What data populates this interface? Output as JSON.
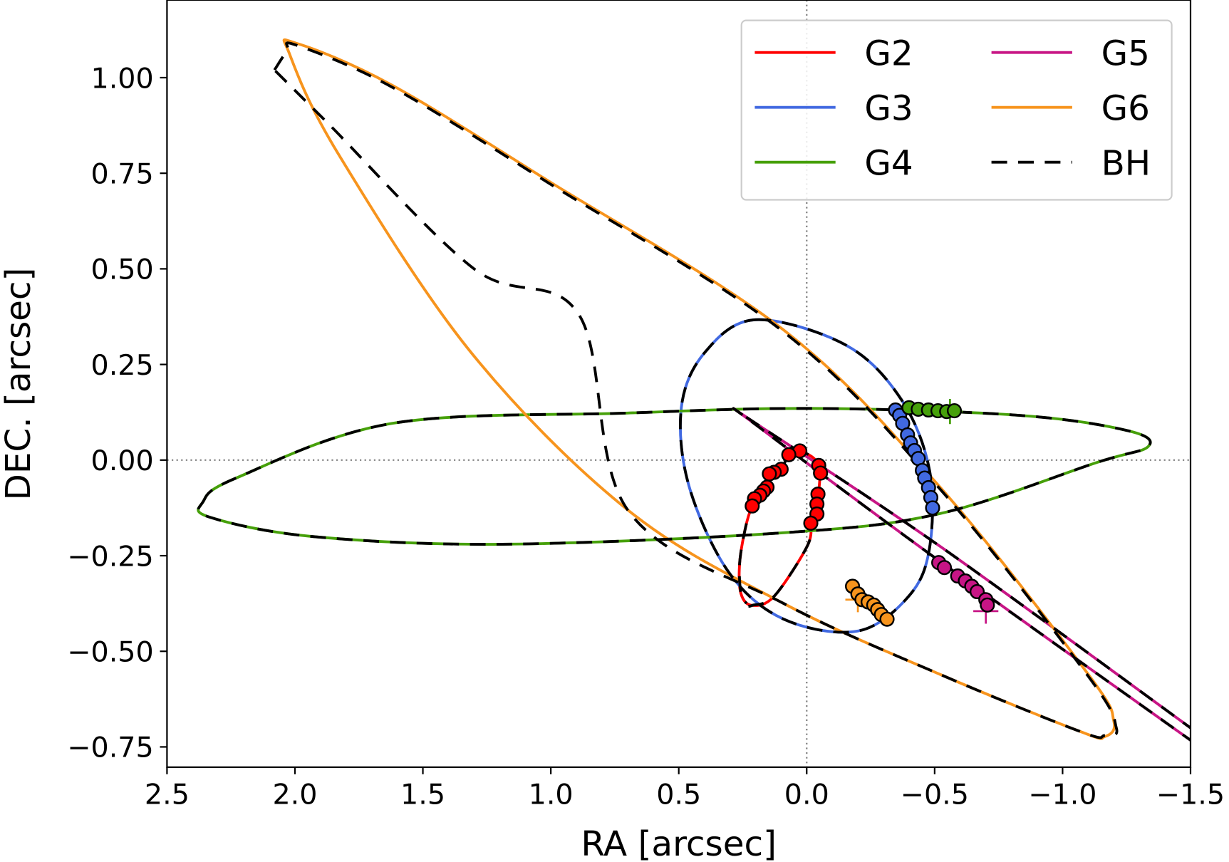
{
  "chart_data": {
    "type": "line",
    "xlabel": "RA [arcsec]",
    "ylabel": "DEC. [arcsec]",
    "xlim": [
      2.5,
      -1.5
    ],
    "ylim": [
      -0.803,
      1.203
    ],
    "x_inverted": true,
    "grid": false,
    "reference_lines": {
      "x": 0.0,
      "y": 0.0,
      "style": "dotted",
      "color": "#808080"
    },
    "xticks": [
      "2.5",
      "2.0",
      "1.5",
      "1.0",
      "0.5",
      "0.0",
      "−0.5",
      "−1.0",
      "−1.5"
    ],
    "xtick_values": [
      2.5,
      2.0,
      1.5,
      1.0,
      0.5,
      0.0,
      -0.5,
      -1.0,
      -1.5
    ],
    "yticks": [
      "1.00",
      "0.75",
      "0.50",
      "0.25",
      "0.00",
      "−0.25",
      "−0.50",
      "−0.75"
    ],
    "ytick_values": [
      1.0,
      0.75,
      0.5,
      0.25,
      0.0,
      -0.25,
      -0.5,
      -0.75
    ],
    "legend": {
      "placement": "top-right",
      "columns": 2,
      "entries": [
        {
          "label": "G2",
          "color": "#ff0000",
          "style": "solid"
        },
        {
          "label": "G3",
          "color": "#4169e1",
          "style": "solid"
        },
        {
          "label": "G4",
          "color": "#46a00a",
          "style": "solid"
        },
        {
          "label": "G5",
          "color": "#c71585",
          "style": "solid"
        },
        {
          "label": "G6",
          "color": "#f7941d",
          "style": "solid"
        },
        {
          "label": "BH",
          "color": "#000000",
          "style": "dashed"
        }
      ]
    },
    "series": [
      {
        "name": "G2",
        "color": "#ff0000",
        "closed": false,
        "orbit": [
          [
            -0.016,
            -0.165
          ],
          [
            -0.04,
            -0.115
          ],
          [
            -0.047,
            -0.014
          ],
          [
            0.027,
            0.024
          ],
          [
            0.07,
            0.014
          ],
          [
            0.1,
            -0.024
          ],
          [
            0.146,
            -0.036
          ],
          [
            0.183,
            -0.092
          ],
          [
            0.213,
            -0.12
          ],
          [
            0.239,
            -0.176
          ],
          [
            0.262,
            -0.269
          ],
          [
            0.257,
            -0.349
          ],
          [
            0.213,
            -0.38
          ],
          [
            0.127,
            -0.356
          ],
          [
            -0.002,
            -0.225
          ],
          [
            -0.016,
            -0.165
          ]
        ],
        "bh_orbit": [
          [
            0.228,
            -0.382
          ],
          [
            0.213,
            -0.38
          ],
          [
            0.127,
            -0.356
          ],
          [
            -0.002,
            -0.225
          ],
          [
            -0.016,
            -0.165
          ],
          [
            -0.04,
            -0.115
          ],
          [
            -0.047,
            -0.014
          ],
          [
            0.027,
            0.024
          ],
          [
            0.07,
            0.014
          ],
          [
            0.1,
            -0.024
          ],
          [
            0.146,
            -0.036
          ],
          [
            0.183,
            -0.092
          ],
          [
            0.213,
            -0.12
          ],
          [
            0.239,
            -0.176
          ],
          [
            0.262,
            -0.269
          ],
          [
            0.257,
            -0.349
          ],
          [
            0.235,
            -0.375
          ]
        ],
        "observations": [
          [
            0.027,
            0.024
          ],
          [
            0.07,
            0.014
          ],
          [
            0.1,
            -0.024
          ],
          [
            0.127,
            -0.032
          ],
          [
            0.146,
            -0.036
          ],
          [
            0.155,
            -0.071
          ],
          [
            0.169,
            -0.081
          ],
          [
            0.183,
            -0.092
          ],
          [
            0.204,
            -0.101
          ],
          [
            0.213,
            -0.12
          ],
          [
            -0.047,
            -0.014
          ],
          [
            -0.054,
            -0.034
          ],
          [
            -0.044,
            -0.089
          ],
          [
            -0.04,
            -0.115
          ],
          [
            -0.04,
            -0.141
          ],
          [
            -0.016,
            -0.165
          ]
        ],
        "crosses": []
      },
      {
        "name": "G3",
        "color": "#4169e1",
        "closed": true,
        "orbit": [
          [
            0.2,
            0.367
          ],
          [
            -0.155,
            0.3
          ],
          [
            -0.37,
            0.158
          ],
          [
            -0.48,
            -0.027
          ],
          [
            -0.48,
            -0.23
          ],
          [
            -0.4,
            -0.355
          ],
          [
            -0.2,
            -0.447
          ],
          [
            0.09,
            -0.416
          ],
          [
            0.305,
            -0.293
          ],
          [
            0.46,
            -0.068
          ],
          [
            0.49,
            0.137
          ],
          [
            0.4,
            0.28
          ]
        ],
        "observations": [
          [
            -0.347,
            0.131
          ],
          [
            -0.363,
            0.117
          ],
          [
            -0.375,
            0.096
          ],
          [
            -0.394,
            0.066
          ],
          [
            -0.406,
            0.045
          ],
          [
            -0.421,
            0.025
          ],
          [
            -0.436,
            0.004
          ],
          [
            -0.452,
            -0.027
          ],
          [
            -0.461,
            -0.047
          ],
          [
            -0.476,
            -0.072
          ],
          [
            -0.485,
            -0.098
          ],
          [
            -0.492,
            -0.125
          ]
        ],
        "crosses": []
      },
      {
        "name": "G4",
        "color": "#46a00a",
        "closed": true,
        "orbit": [
          [
            2.36,
            -0.11
          ],
          [
            2.23,
            -0.047
          ],
          [
            1.62,
            0.096
          ],
          [
            0.7,
            0.123
          ],
          [
            -0.03,
            0.135
          ],
          [
            -0.83,
            0.117
          ],
          [
            -1.26,
            0.076
          ],
          [
            -1.334,
            0.035
          ],
          [
            -1.135,
            -0.006
          ],
          [
            -0.52,
            -0.14
          ],
          [
            0.09,
            -0.19
          ],
          [
            1.19,
            -0.22
          ],
          [
            1.93,
            -0.2
          ],
          [
            2.33,
            -0.15
          ]
        ],
        "observations": [
          [
            -0.4,
            0.137
          ],
          [
            -0.436,
            0.133
          ],
          [
            -0.476,
            0.131
          ],
          [
            -0.513,
            0.129
          ],
          [
            -0.547,
            0.127
          ],
          [
            -0.577,
            0.129
          ]
        ],
        "crosses": [
          [
            -0.56,
            0.127
          ]
        ]
      },
      {
        "name": "G5",
        "color": "#c71585",
        "closed": false,
        "orbit": [
          [
            -1.52,
            -0.71
          ],
          [
            -0.52,
            -0.225
          ],
          [
            0.206,
            0.099
          ],
          [
            0.19,
            0.088
          ],
          [
            -0.49,
            -0.25
          ],
          [
            -1.52,
            -0.742
          ]
        ],
        "observations": [
          [
            -0.516,
            -0.268
          ],
          [
            -0.538,
            -0.281
          ],
          [
            -0.59,
            -0.303
          ],
          [
            -0.62,
            -0.316
          ],
          [
            -0.645,
            -0.33
          ],
          [
            -0.666,
            -0.344
          ],
          [
            -0.7,
            -0.365
          ],
          [
            -0.706,
            -0.379
          ]
        ],
        "crosses": [
          [
            -0.7,
            -0.395
          ]
        ]
      },
      {
        "name": "G6",
        "color": "#f7941d",
        "closed": true,
        "orbit": [
          [
            1.995,
            1.09
          ],
          [
            1.62,
            0.98
          ],
          [
            1.01,
            0.73
          ],
          [
            0.09,
            0.34
          ],
          [
            -0.52,
            -0.07
          ],
          [
            -1.1,
            -0.56
          ],
          [
            -1.2,
            -0.682
          ],
          [
            -1.165,
            -0.723
          ],
          [
            -1.07,
            -0.71
          ],
          [
            -0.52,
            -0.56
          ],
          [
            0.09,
            -0.375
          ],
          [
            0.7,
            -0.13
          ],
          [
            1.31,
            0.28
          ],
          [
            1.83,
            0.8
          ],
          [
            2.02,
            1.06
          ]
        ],
        "bh_orbit": [
          [
            2.08,
            1.02
          ],
          [
            2.03,
            1.07
          ],
          [
            1.995,
            1.085
          ],
          [
            1.62,
            0.975
          ],
          [
            1.01,
            0.725
          ],
          [
            0.09,
            0.335
          ],
          [
            -0.52,
            -0.075
          ],
          [
            -1.1,
            -0.565
          ],
          [
            -1.21,
            -0.7
          ],
          [
            -1.165,
            -0.72
          ],
          [
            -1.07,
            -0.71
          ],
          [
            -0.52,
            -0.56
          ],
          [
            0.09,
            -0.375
          ],
          [
            0.7,
            -0.13
          ],
          [
            0.89,
            0.38
          ],
          [
            1.3,
            0.5
          ],
          [
            1.87,
            0.88
          ],
          [
            2.08,
            1.02
          ]
        ],
        "observations": [
          [
            -0.179,
            -0.33
          ],
          [
            -0.2,
            -0.35
          ],
          [
            -0.216,
            -0.365
          ],
          [
            -0.24,
            -0.371
          ],
          [
            -0.262,
            -0.379
          ],
          [
            -0.277,
            -0.391
          ],
          [
            -0.292,
            -0.404
          ],
          [
            -0.314,
            -0.416
          ]
        ],
        "crosses": [
          [
            -0.2,
            -0.365
          ]
        ]
      }
    ]
  }
}
